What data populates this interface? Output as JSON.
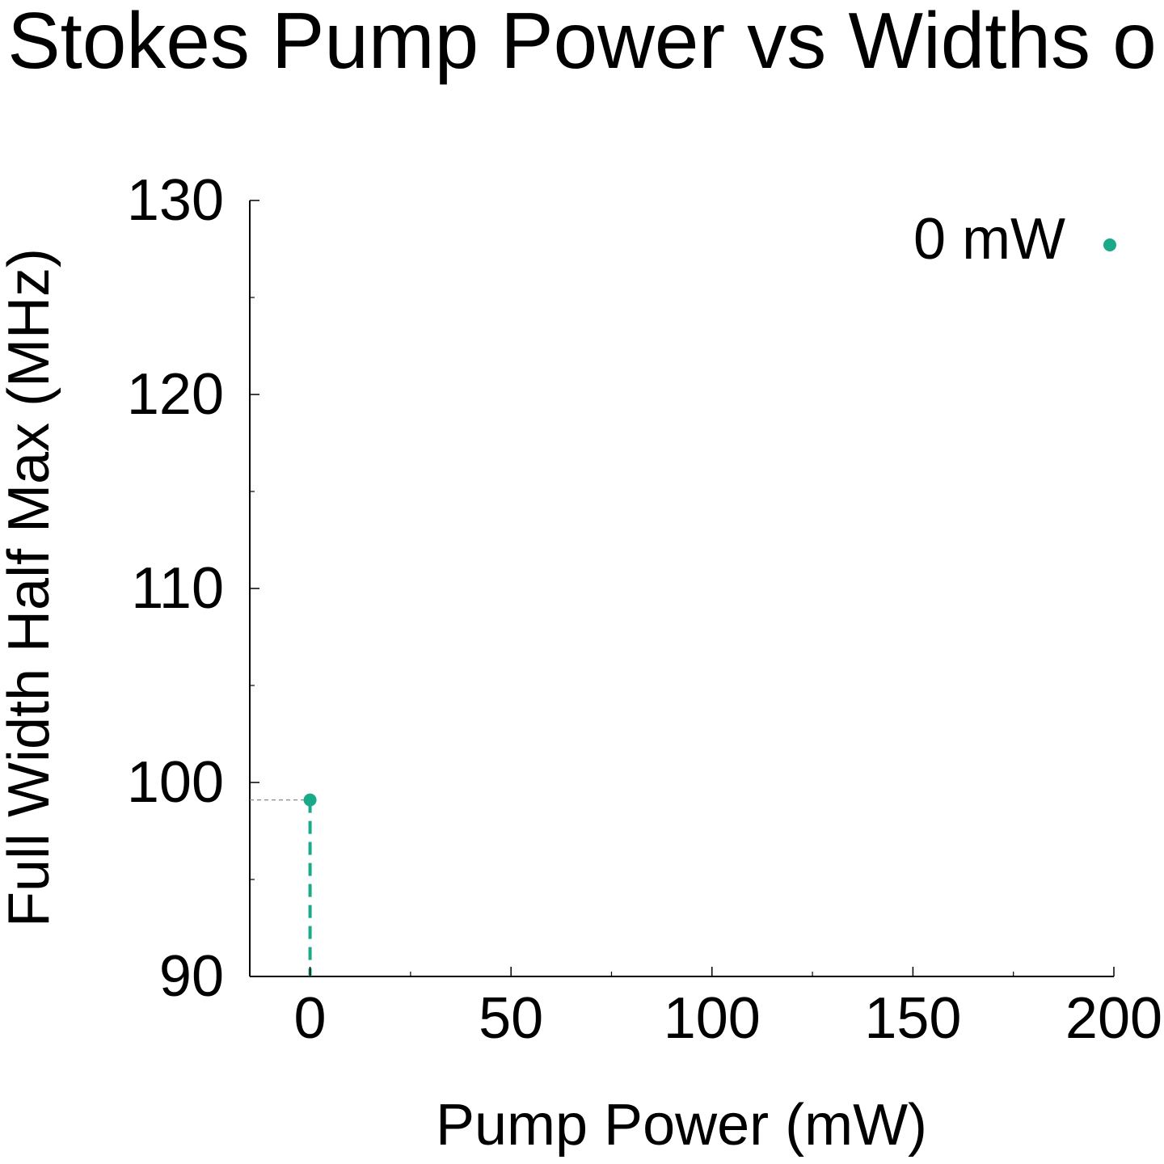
{
  "chart_data": {
    "type": "scatter",
    "title": "Stokes Pump Power vs Widths o",
    "xlabel": "Pump Power (mW)",
    "ylabel": "Full Width Half Max (MHz)",
    "xlim": [
      -15,
      200
    ],
    "ylim": [
      90,
      130
    ],
    "x_ticks": [
      "0",
      "50",
      "100",
      "150",
      "200"
    ],
    "y_ticks": [
      "90",
      "100",
      "110",
      "120",
      "130"
    ],
    "legend_position": "top-right",
    "series": [
      {
        "name": "0 mW",
        "color": "#1aaa8a",
        "points": [
          {
            "x": 0,
            "y": 99.1
          }
        ]
      }
    ],
    "annotations": [
      {
        "type": "horizontal-dashed-guide",
        "y": 99.1,
        "color": "#888888"
      },
      {
        "type": "vertical-dashed-guide",
        "x": 0,
        "color": "#1aaa8a"
      }
    ]
  }
}
